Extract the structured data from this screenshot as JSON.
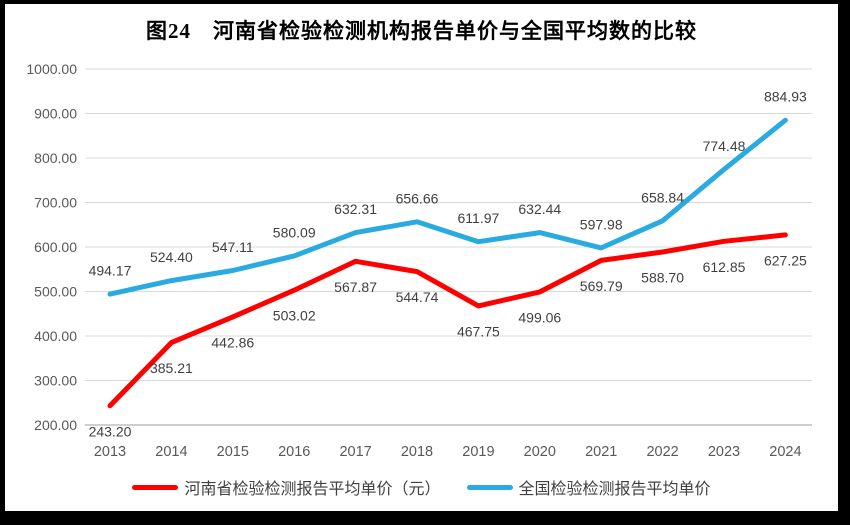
{
  "chart": {
    "title": "图24　河南省检验检测机构报告单价与全国平均数的比较",
    "legend": [
      "河南省检验检测报告平均单价（元）",
      "全国检验检测报告平均单价"
    ]
  },
  "chart_data": {
    "type": "line",
    "title": "图24　河南省检验检测机构报告单价与全国平均数的比较",
    "categories": [
      "2013",
      "2014",
      "2015",
      "2016",
      "2017",
      "2018",
      "2019",
      "2020",
      "2021",
      "2022",
      "2023",
      "2024"
    ],
    "series": [
      {
        "name": "河南省检验检测报告平均单价（元）",
        "color": "#FF0000",
        "label_position": "below",
        "values": [
          243.2,
          385.21,
          442.86,
          503.02,
          567.87,
          544.74,
          467.75,
          499.06,
          569.79,
          588.7,
          612.85,
          627.25
        ]
      },
      {
        "name": "全国检验检测报告平均单价",
        "color": "#29ABE2",
        "label_position": "above",
        "values": [
          494.17,
          524.4,
          547.11,
          580.09,
          632.31,
          656.66,
          611.97,
          632.44,
          597.98,
          658.84,
          774.48,
          884.93
        ]
      }
    ],
    "xlabel": "",
    "ylabel": "",
    "ylim": [
      200,
      1000
    ],
    "y_tick_step": 100,
    "y_tick_labels": [
      "200.00",
      "300.00",
      "400.00",
      "500.00",
      "600.00",
      "700.00",
      "800.00",
      "900.00",
      "1000.00"
    ],
    "grid": true,
    "legend_position": "bottom",
    "colors": {
      "grid": "#D9D9D9",
      "axis_line": "#BFBFBF",
      "tick_text": "#595959",
      "data_label_text": "#404040",
      "frame": "#000000",
      "background": "#FFFFFF"
    }
  }
}
